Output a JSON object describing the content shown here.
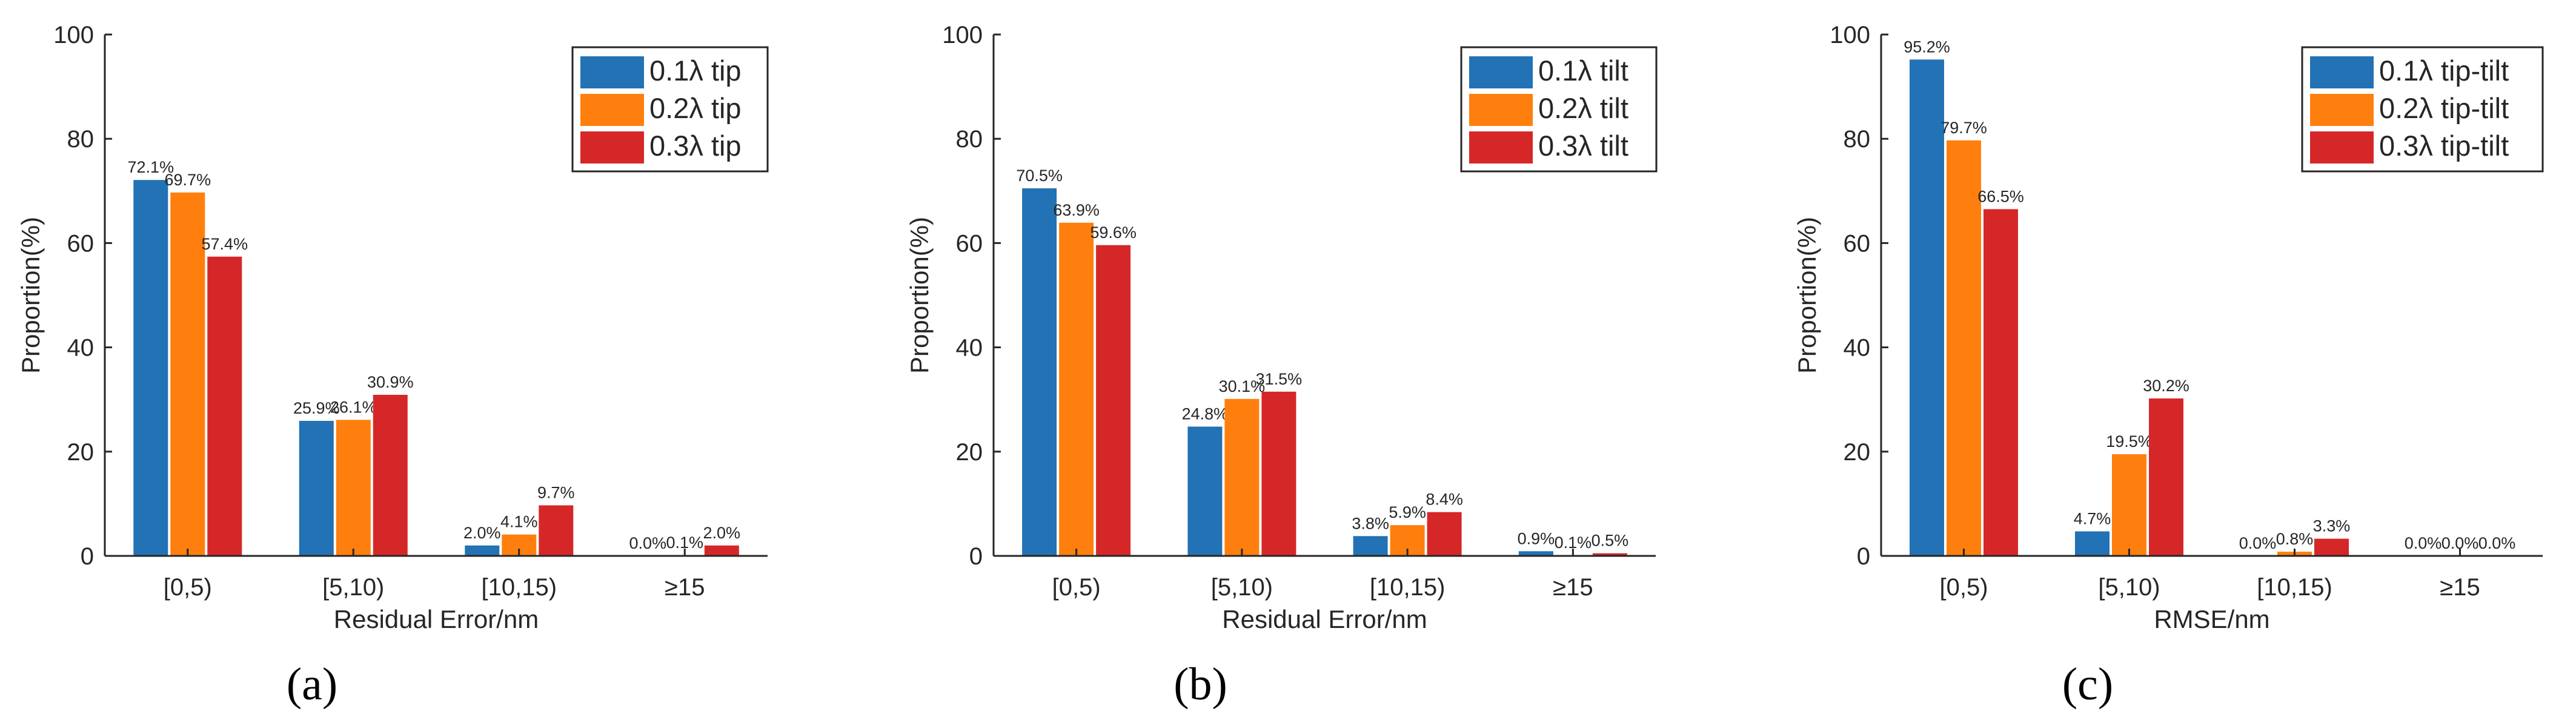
{
  "chart_data": [
    {
      "type": "bar",
      "panel_label": "(a)",
      "categories": [
        "[0,5)",
        "[5,10)",
        "[10,15)",
        "≥15"
      ],
      "series": [
        {
          "name": "0.1λ tip",
          "values": [
            72.1,
            25.9,
            2.0,
            0.0
          ],
          "labels": [
            "72.1%",
            "25.9%",
            "2.0%",
            "0.0%"
          ]
        },
        {
          "name": "0.2λ tip",
          "values": [
            69.7,
            26.1,
            4.1,
            0.1
          ],
          "labels": [
            "69.7%",
            "26.1%",
            "4.1%",
            "0.1%"
          ]
        },
        {
          "name": "0.3λ tip",
          "values": [
            57.4,
            30.9,
            9.7,
            2.0
          ],
          "labels": [
            "57.4%",
            "30.9%",
            "9.7%",
            "2.0%"
          ]
        }
      ],
      "xlabel": "Residual Error/nm",
      "ylabel": "Proportion(%)",
      "ylim": [
        0,
        100
      ],
      "yticks": [
        "0",
        "20",
        "40",
        "60",
        "80",
        "100"
      ],
      "legend_position": "top-right",
      "grid": false
    },
    {
      "type": "bar",
      "panel_label": "(b)",
      "categories": [
        "[0,5)",
        "[5,10)",
        "[10,15)",
        "≥15"
      ],
      "series": [
        {
          "name": "0.1λ tilt",
          "values": [
            70.5,
            24.8,
            3.8,
            0.9
          ],
          "labels": [
            "70.5%",
            "24.8%",
            "3.8%",
            "0.9%"
          ]
        },
        {
          "name": "0.2λ tilt",
          "values": [
            63.9,
            30.1,
            5.9,
            0.1
          ],
          "labels": [
            "63.9%",
            "30.1%",
            "5.9%",
            "0.1%"
          ]
        },
        {
          "name": "0.3λ tilt",
          "values": [
            59.6,
            31.5,
            8.4,
            0.5
          ],
          "labels": [
            "59.6%",
            "31.5%",
            "8.4%",
            "0.5%"
          ]
        }
      ],
      "xlabel": "Residual Error/nm",
      "ylabel": "Proportion(%)",
      "ylim": [
        0,
        100
      ],
      "yticks": [
        "0",
        "20",
        "40",
        "60",
        "80",
        "100"
      ],
      "legend_position": "top-right",
      "grid": false
    },
    {
      "type": "bar",
      "panel_label": "(c)",
      "categories": [
        "[0,5)",
        "[5,10)",
        "[10,15)",
        "≥15"
      ],
      "series": [
        {
          "name": "0.1λ tip-tilt",
          "values": [
            95.2,
            4.7,
            0.0,
            0.0
          ],
          "labels": [
            "95.2%",
            "4.7%",
            "0.0%",
            "0.0%"
          ]
        },
        {
          "name": "0.2λ tip-tilt",
          "values": [
            79.7,
            19.5,
            0.8,
            0.0
          ],
          "labels": [
            "79.7%",
            "19.5%",
            "0.8%",
            "0.0%"
          ]
        },
        {
          "name": "0.3λ tip-tilt",
          "values": [
            66.5,
            30.2,
            3.3,
            0.0
          ],
          "labels": [
            "66.5%",
            "30.2%",
            "3.3%",
            "0.0%"
          ]
        }
      ],
      "xlabel": "RMSE/nm",
      "ylabel": "Proportion(%)",
      "ylim": [
        0,
        100
      ],
      "yticks": [
        "0",
        "20",
        "40",
        "60",
        "80",
        "100"
      ],
      "legend_position": "top-right",
      "grid": false
    }
  ],
  "colors": {
    "series": [
      "#2272b5",
      "#ff7f0e",
      "#d62728"
    ],
    "axis": "#262626",
    "background": "#ffffff"
  }
}
